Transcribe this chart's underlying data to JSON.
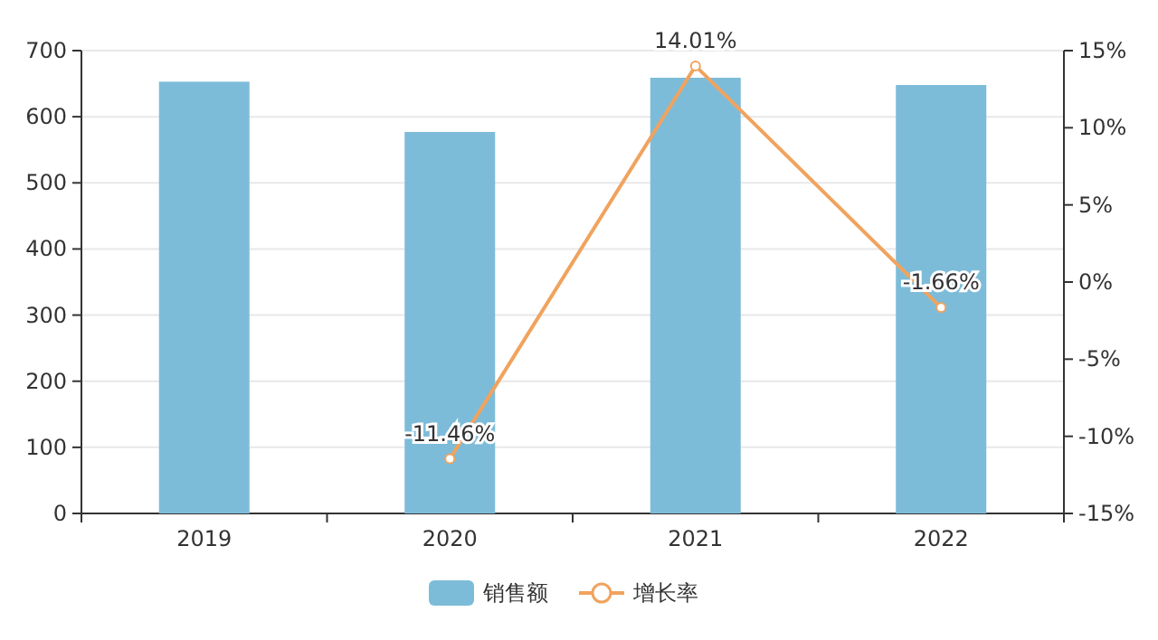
{
  "chart_data": {
    "type": "bar",
    "categories": [
      "2019",
      "2020",
      "2021",
      "2022"
    ],
    "series": [
      {
        "name": "销售额",
        "color": "#7dbcd9",
        "values": [
          653,
          577,
          659,
          648
        ]
      },
      {
        "name": "增长率",
        "type": "line",
        "axis": "y2",
        "color": "#f0a35e",
        "marker": "circle",
        "values": [
          null,
          -11.46,
          14.01,
          -1.66
        ],
        "value_labels": [
          null,
          "-11.46%",
          "14.01%",
          "-1.66%"
        ]
      }
    ],
    "ylim": [
      0,
      700
    ],
    "yticks": [
      0,
      100,
      200,
      300,
      400,
      500,
      600,
      700
    ],
    "y2lim": [
      -15,
      15
    ],
    "y2ticks": [
      {
        "value": -15,
        "label": "-15%"
      },
      {
        "value": -10,
        "label": "-10%"
      },
      {
        "value": -5,
        "label": "-5%"
      },
      {
        "value": 0,
        "label": "0%"
      },
      {
        "value": 5,
        "label": "5%"
      },
      {
        "value": 10,
        "label": "10%"
      },
      {
        "value": 15,
        "label": "15%"
      }
    ],
    "grid": "y",
    "legend": "bottom"
  }
}
